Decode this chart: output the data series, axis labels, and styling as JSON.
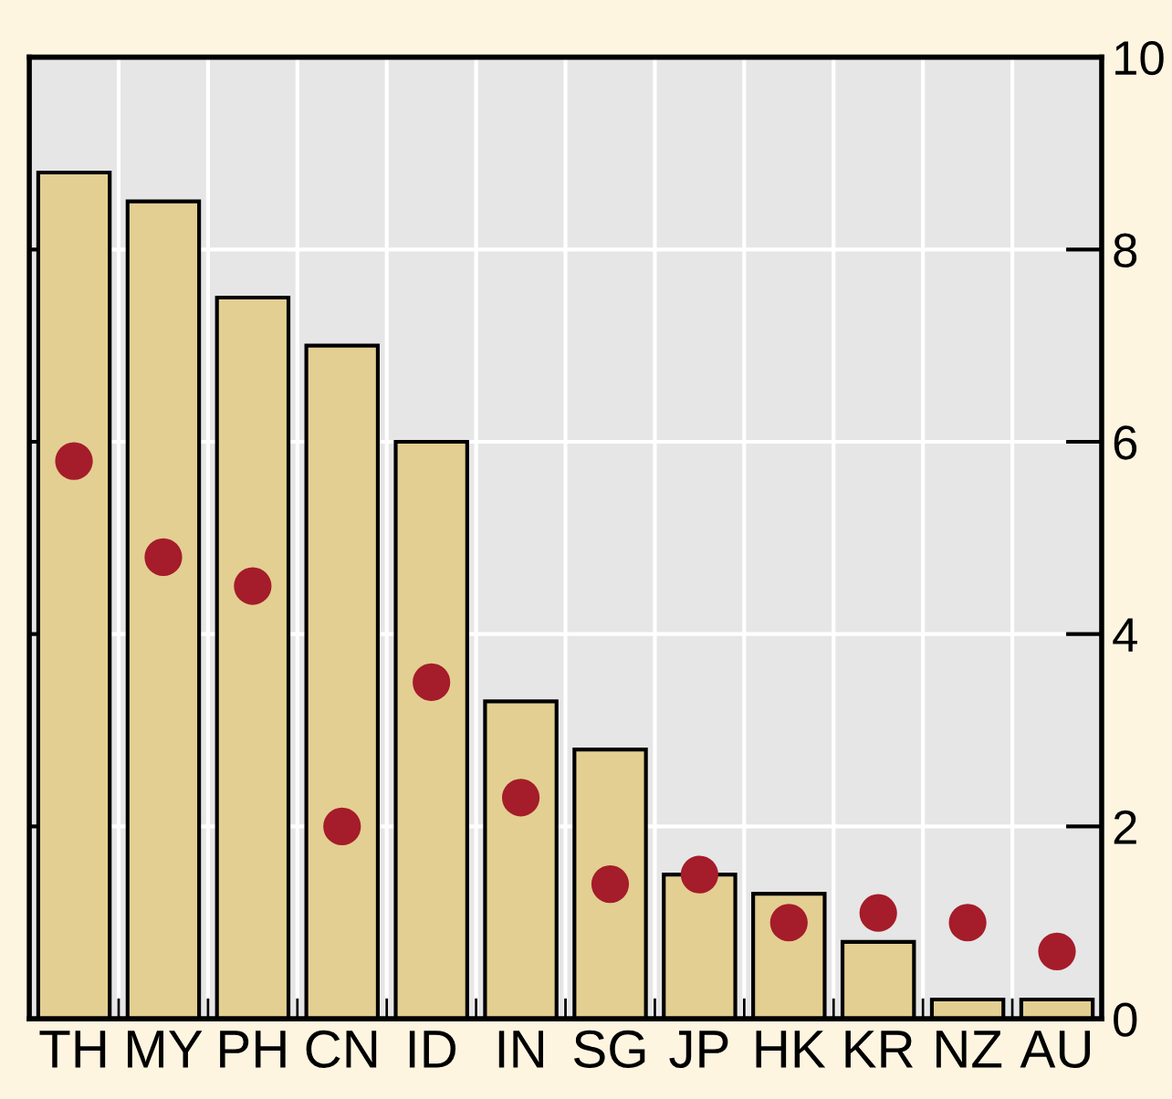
{
  "chart_data": {
    "type": "bar",
    "categories": [
      "TH",
      "MY",
      "PH",
      "CN",
      "ID",
      "IN",
      "SG",
      "JP",
      "HK",
      "KR",
      "NZ",
      "AU"
    ],
    "series": [
      {
        "color": "#e3cf92",
        "values": [
          8.8,
          8.5,
          7.5,
          7.0,
          6.0,
          3.3,
          2.8,
          1.5,
          1.3,
          0.8,
          0.2,
          0.2
        ]
      },
      {
        "type": "scatter",
        "color": "#a51c2a",
        "values": [
          5.8,
          4.8,
          4.5,
          2.0,
          3.5,
          2.3,
          1.4,
          1.5,
          1.0,
          1.1,
          1.0,
          0.7
        ]
      }
    ],
    "ylim": [
      0,
      10
    ],
    "yticks": [
      0,
      2,
      4,
      6,
      8,
      10
    ],
    "grid": true,
    "marker": "circle"
  }
}
